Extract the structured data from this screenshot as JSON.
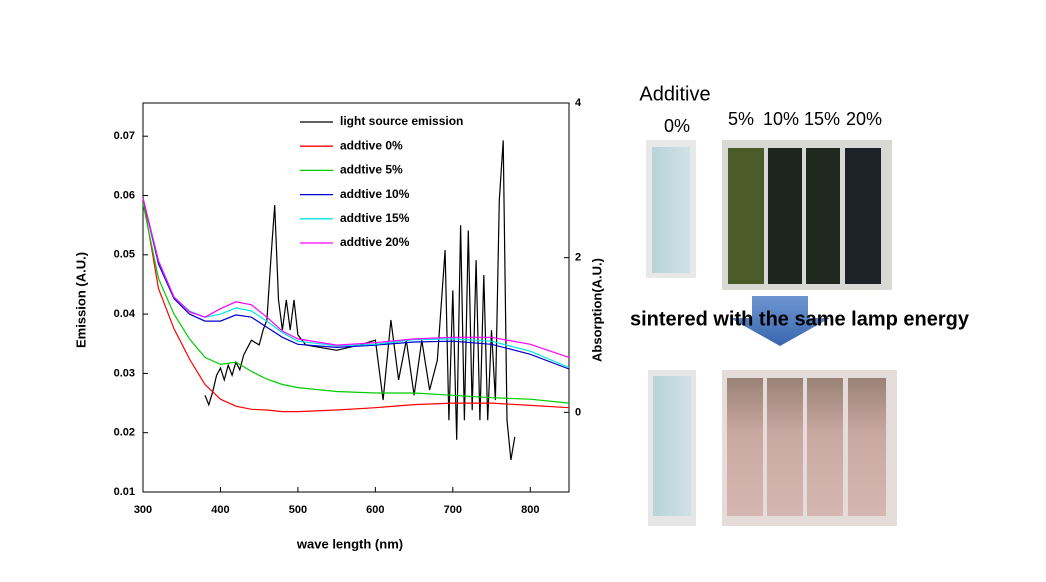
{
  "chart_data": {
    "type": "line",
    "x_label": "wave length (nm)",
    "y_label": "Emission (A.U.)",
    "y2_label": "Absorption(A.U.)",
    "xlim": [
      300,
      850
    ],
    "xticks": [
      300,
      400,
      500,
      600,
      700,
      800
    ],
    "ylim": [
      0.01,
      0.0756
    ],
    "yticks": [
      0.01,
      0.02,
      0.03,
      0.04,
      0.05,
      0.06,
      0.07
    ],
    "y2lim": [
      -1.03,
      4
    ],
    "y2ticks": [
      0,
      2,
      4
    ],
    "x": [
      300,
      320,
      340,
      360,
      380,
      400,
      420,
      440,
      460,
      480,
      500,
      550,
      600,
      650,
      700,
      750,
      800,
      850
    ],
    "series": [
      {
        "name": "light source emission",
        "color": "#000000",
        "x": [
          380,
          385,
          390,
          395,
          400,
          405,
          410,
          415,
          420,
          425,
          430,
          440,
          450,
          455,
          460,
          465,
          470,
          475,
          480,
          485,
          490,
          495,
          500,
          510,
          550,
          580,
          600,
          610,
          620,
          630,
          640,
          650,
          660,
          670,
          680,
          690,
          695,
          700,
          705,
          710,
          715,
          720,
          725,
          730,
          735,
          740,
          745,
          750,
          755,
          760,
          765,
          770,
          775,
          780
        ],
        "values": [
          0.0263,
          0.0247,
          0.0269,
          0.0297,
          0.0309,
          0.0289,
          0.0314,
          0.0297,
          0.0319,
          0.0306,
          0.0331,
          0.0356,
          0.0348,
          0.0373,
          0.039,
          0.0491,
          0.0584,
          0.0424,
          0.0373,
          0.0424,
          0.0373,
          0.0424,
          0.0365,
          0.0348,
          0.0339,
          0.0348,
          0.0356,
          0.0255,
          0.039,
          0.0289,
          0.0356,
          0.0263,
          0.0356,
          0.0272,
          0.0322,
          0.0508,
          0.0221,
          0.044,
          0.0188,
          0.055,
          0.0221,
          0.0541,
          0.0238,
          0.0491,
          0.0221,
          0.0466,
          0.0221,
          0.0373,
          0.0255,
          0.0592,
          0.0693,
          0.0221,
          0.0154,
          0.0193
        ]
      },
      {
        "name": "addtive 0%",
        "color": "#ff0000",
        "axis": "y2",
        "values": [
          2.77,
          1.6,
          1.08,
          0.69,
          0.36,
          0.17,
          0.08,
          0.04,
          0.03,
          0.01,
          0.01,
          0.03,
          0.06,
          0.1,
          0.12,
          0.12,
          0.09,
          0.06
        ]
      },
      {
        "name": "addtive 5%",
        "color": "#00cc00",
        "axis": "y2",
        "values": [
          2.7,
          1.73,
          1.27,
          0.95,
          0.71,
          0.62,
          0.65,
          0.53,
          0.43,
          0.36,
          0.32,
          0.27,
          0.25,
          0.25,
          0.22,
          0.19,
          0.17,
          0.12
        ]
      },
      {
        "name": "addtive 10%",
        "color": "#0000cc",
        "axis": "y2",
        "values": [
          2.77,
          1.92,
          1.47,
          1.27,
          1.18,
          1.18,
          1.26,
          1.23,
          1.1,
          0.97,
          0.88,
          0.84,
          0.87,
          0.91,
          0.92,
          0.88,
          0.75,
          0.56
        ]
      },
      {
        "name": "addtive 15%",
        "color": "#00e5e5",
        "axis": "y2",
        "values": [
          2.77,
          1.96,
          1.49,
          1.31,
          1.23,
          1.27,
          1.35,
          1.31,
          1.18,
          1.03,
          0.92,
          0.86,
          0.88,
          0.94,
          0.95,
          0.92,
          0.79,
          0.58
        ]
      },
      {
        "name": "addtive 20%",
        "color": "#ff00ff",
        "axis": "y2",
        "values": [
          2.77,
          1.96,
          1.49,
          1.3,
          1.23,
          1.34,
          1.43,
          1.39,
          1.23,
          1.05,
          0.95,
          0.87,
          0.9,
          0.95,
          0.97,
          0.97,
          0.88,
          0.71
        ]
      }
    ]
  },
  "photos": {
    "title": "Additive",
    "top_label": "0%",
    "labels": [
      "5%",
      "10%",
      "15%",
      "20%"
    ],
    "caption": "sintered with the same lamp energy"
  }
}
